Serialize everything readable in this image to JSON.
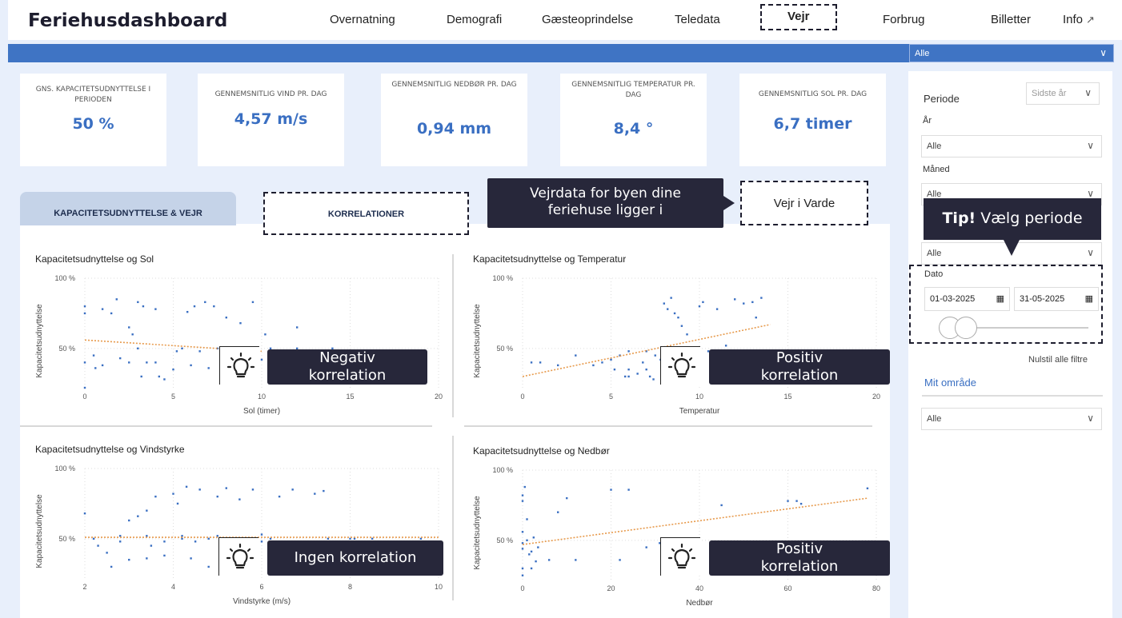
{
  "app": {
    "title": "Feriehusdashboard"
  },
  "nav": {
    "items": [
      "Overnatning",
      "Demografi",
      "Gæsteoprindelse",
      "Teledata",
      "Vejr",
      "Forbrug",
      "Billetter",
      "Info"
    ],
    "active": "Vejr",
    "external_icon": "external-link-icon"
  },
  "bluebar": {
    "select_value": "Alle"
  },
  "kpis": [
    {
      "label": "GNS. KAPACITETSUDNYTTELSE I PERIODEN",
      "value": "50 %"
    },
    {
      "label": "GENNEMSNITLIG VIND PR. DAG",
      "value": "4,57 m/s"
    },
    {
      "label": "GENNEMSNITLIG NEDBØR PR. DAG",
      "value": "0,94 mm"
    },
    {
      "label": "GENNEMSNITLIG TEMPERATUR PR. DAG",
      "value": "8,4 °"
    },
    {
      "label": "GENNEMSNITLIG SOL PR. DAG",
      "value": "6,7 timer"
    }
  ],
  "tabs": {
    "tab1": "KAPACITETSUDNYTTELSE & VEJR",
    "tab2": "KORRELATIONER"
  },
  "callout": {
    "line1": "Vejrdata for byen dine",
    "line2": "feriehuse ligger i"
  },
  "city_button": "Vejr i Varde",
  "badges": {
    "sol": [
      "Negativ",
      "korrelation"
    ],
    "temp": [
      "Positiv",
      "korrelation"
    ],
    "vind": [
      "Ingen korrelation"
    ],
    "nedbor": [
      "Positiv",
      "korrelation"
    ]
  },
  "filters": {
    "periode_label": "Periode",
    "periode_value": "Sidste år",
    "aar_label": "År",
    "aar_value": "Alle",
    "maaned_label": "Måned",
    "maaned_value": "Alle",
    "third_value": "Alle",
    "tip_bold": "Tip!",
    "tip_text": " Vælg periode",
    "dato_label": "Dato",
    "date_from": "01-03-2025",
    "date_to": "31-05-2025",
    "reset": "Nulstil alle filtre",
    "mit_omraade": "Mit område",
    "omraade_value": "Alle"
  },
  "chart_data": [
    {
      "type": "scatter",
      "title": "Kapacitetsudnyttelse og Sol",
      "xlabel": "Sol (timer)",
      "ylabel": "Kapacitetsudnyttelse",
      "xlim": [
        0,
        20
      ],
      "xticks": [
        0,
        5,
        10,
        15,
        20
      ],
      "yticks": [
        "100 %",
        "50 %"
      ],
      "y_tick_values": [
        100,
        50
      ],
      "ylim": [
        22,
        100
      ],
      "trend": [
        [
          0,
          56
        ],
        [
          10,
          48
        ]
      ],
      "points": [
        [
          0,
          80
        ],
        [
          0,
          75
        ],
        [
          0.5,
          45
        ],
        [
          1,
          78
        ],
        [
          1.5,
          75
        ],
        [
          1.8,
          85
        ],
        [
          2.5,
          65
        ],
        [
          2.7,
          60
        ],
        [
          3,
          83
        ],
        [
          3.3,
          80
        ],
        [
          4,
          78
        ],
        [
          5.8,
          76
        ],
        [
          6.2,
          80
        ],
        [
          6.8,
          83
        ],
        [
          7.3,
          80
        ],
        [
          8,
          72
        ],
        [
          8.8,
          68
        ],
        [
          9.5,
          83
        ],
        [
          10.2,
          60
        ],
        [
          11,
          48
        ],
        [
          12,
          65
        ],
        [
          12.5,
          48
        ],
        [
          13,
          48
        ],
        [
          0,
          40
        ],
        [
          0.6,
          36
        ],
        [
          1,
          38
        ],
        [
          2,
          43
        ],
        [
          2.5,
          40
        ],
        [
          3.2,
          30
        ],
        [
          3.5,
          40
        ],
        [
          4,
          40
        ],
        [
          4.2,
          30
        ],
        [
          4.5,
          28
        ],
        [
          5,
          35
        ],
        [
          5.2,
          48
        ],
        [
          6,
          38
        ],
        [
          6.5,
          48
        ],
        [
          7,
          36
        ],
        [
          7.5,
          50
        ],
        [
          8,
          45
        ],
        [
          8.5,
          45
        ],
        [
          9,
          48
        ],
        [
          10,
          42
        ],
        [
          11.5,
          45
        ],
        [
          13.5,
          48
        ],
        [
          14,
          50
        ],
        [
          0,
          22
        ],
        [
          3,
          50
        ],
        [
          5.5,
          50
        ],
        [
          9,
          50
        ],
        [
          10.5,
          50
        ],
        [
          12,
          50
        ]
      ]
    },
    {
      "type": "scatter",
      "title": "Kapacitetsudnyttelse og Temperatur",
      "xlabel": "Temperatur",
      "ylabel": "Kapacitetsudnyttelse",
      "xlim": [
        0,
        20
      ],
      "xticks": [
        0,
        5,
        10,
        15,
        20
      ],
      "yticks": [
        "100 %",
        "50 %"
      ],
      "y_tick_values": [
        100,
        50
      ],
      "ylim": [
        22,
        100
      ],
      "trend": [
        [
          0,
          30
        ],
        [
          14,
          67
        ]
      ],
      "points": [
        [
          0.5,
          40
        ],
        [
          1,
          40
        ],
        [
          2,
          38
        ],
        [
          3,
          45
        ],
        [
          4,
          38
        ],
        [
          4.5,
          40
        ],
        [
          5,
          42
        ],
        [
          5.2,
          35
        ],
        [
          5.5,
          45
        ],
        [
          6,
          48
        ],
        [
          6,
          35
        ],
        [
          6.5,
          32
        ],
        [
          6.8,
          40
        ],
        [
          7,
          35
        ],
        [
          7,
          48
        ],
        [
          7.2,
          30
        ],
        [
          7.5,
          45
        ],
        [
          7.8,
          42
        ],
        [
          8,
          40
        ],
        [
          8,
          82
        ],
        [
          8.2,
          78
        ],
        [
          8.4,
          86
        ],
        [
          8.6,
          75
        ],
        [
          8.8,
          72
        ],
        [
          9,
          66
        ],
        [
          9.3,
          60
        ],
        [
          9.5,
          42
        ],
        [
          10,
          80
        ],
        [
          10.2,
          83
        ],
        [
          10.5,
          48
        ],
        [
          11,
          78
        ],
        [
          11.5,
          52
        ],
        [
          12,
          85
        ],
        [
          12.5,
          82
        ],
        [
          13,
          83
        ],
        [
          13.2,
          72
        ],
        [
          13.5,
          86
        ],
        [
          14,
          48
        ],
        [
          14.2,
          42
        ],
        [
          14.5,
          48
        ],
        [
          15,
          48
        ],
        [
          15.5,
          45
        ],
        [
          6,
          30
        ],
        [
          7.4,
          28
        ],
        [
          5.8,
          30
        ],
        [
          9,
          48
        ],
        [
          11,
          48
        ],
        [
          12,
          48
        ],
        [
          13,
          48
        ],
        [
          8.5,
          50
        ]
      ]
    },
    {
      "type": "scatter",
      "title": "Kapacitetsudnyttelse og Vindstyrke",
      "xlabel": "Vindstyrke (m/s)",
      "ylabel": "Kapacitetsudnyttelse",
      "xlim": [
        2,
        10
      ],
      "xticks": [
        2,
        4,
        6,
        8,
        10
      ],
      "yticks": [
        "100 %",
        "50 %"
      ],
      "y_tick_values": [
        100,
        50
      ],
      "ylim": [
        22,
        100
      ],
      "trend": [
        [
          2,
          51
        ],
        [
          10,
          51
        ]
      ],
      "points": [
        [
          2,
          68
        ],
        [
          2.3,
          45
        ],
        [
          2.5,
          40
        ],
        [
          2.6,
          30
        ],
        [
          2.8,
          48
        ],
        [
          3,
          63
        ],
        [
          3.2,
          66
        ],
        [
          3.4,
          70
        ],
        [
          3.5,
          45
        ],
        [
          3.6,
          80
        ],
        [
          3.8,
          48
        ],
        [
          4,
          82
        ],
        [
          4.1,
          75
        ],
        [
          4.2,
          50
        ],
        [
          4.3,
          87
        ],
        [
          4.5,
          48
        ],
        [
          4.6,
          85
        ],
        [
          4.8,
          50
        ],
        [
          5,
          80
        ],
        [
          5.2,
          86
        ],
        [
          5.5,
          78
        ],
        [
          5.8,
          85
        ],
        [
          6,
          48
        ],
        [
          6.2,
          50
        ],
        [
          6.4,
          80
        ],
        [
          6.7,
          85
        ],
        [
          7,
          48
        ],
        [
          7.2,
          82
        ],
        [
          7.4,
          84
        ],
        [
          8,
          50
        ],
        [
          8.1,
          50
        ],
        [
          8.3,
          48
        ],
        [
          8.5,
          50
        ],
        [
          9.6,
          50
        ],
        [
          3,
          35
        ],
        [
          3.4,
          36
        ],
        [
          3.8,
          38
        ],
        [
          4.4,
          36
        ],
        [
          4.8,
          30
        ],
        [
          5.1,
          30
        ],
        [
          5.6,
          40
        ],
        [
          6.5,
          36
        ],
        [
          7,
          40
        ],
        [
          7.6,
          42
        ],
        [
          2.2,
          50
        ],
        [
          2.8,
          52
        ],
        [
          3.4,
          52
        ],
        [
          4.2,
          52
        ],
        [
          5,
          52
        ],
        [
          6,
          53
        ],
        [
          7.5,
          50
        ]
      ]
    },
    {
      "type": "scatter",
      "title": "Kapacitetsudnyttelse og Nedbør",
      "xlabel": "Nedbør",
      "ylabel": "Kapacitetsudnyttelse",
      "xlim": [
        0,
        80
      ],
      "xticks": [
        0,
        20,
        40,
        60,
        80
      ],
      "yticks": [
        "100 %",
        "50 %"
      ],
      "y_tick_values": [
        100,
        50
      ],
      "ylim": [
        22,
        100
      ],
      "trend": [
        [
          0,
          47
        ],
        [
          78,
          80
        ]
      ],
      "points": [
        [
          0,
          82
        ],
        [
          0,
          78
        ],
        [
          0.5,
          88
        ],
        [
          1,
          65
        ],
        [
          1.5,
          40
        ],
        [
          2,
          30
        ],
        [
          2.5,
          52
        ],
        [
          3,
          35
        ],
        [
          3.5,
          45
        ],
        [
          6,
          36
        ],
        [
          8,
          70
        ],
        [
          10,
          80
        ],
        [
          12,
          36
        ],
        [
          20,
          86
        ],
        [
          22,
          36
        ],
        [
          24,
          86
        ],
        [
          28,
          45
        ],
        [
          31,
          48
        ],
        [
          45,
          75
        ],
        [
          60,
          78
        ],
        [
          62,
          78
        ],
        [
          63,
          76
        ],
        [
          78,
          87
        ],
        [
          0,
          30
        ],
        [
          0,
          25
        ],
        [
          0,
          44
        ],
        [
          0,
          48
        ],
        [
          0,
          56
        ],
        [
          1,
          50
        ],
        [
          2,
          42
        ]
      ]
    }
  ]
}
